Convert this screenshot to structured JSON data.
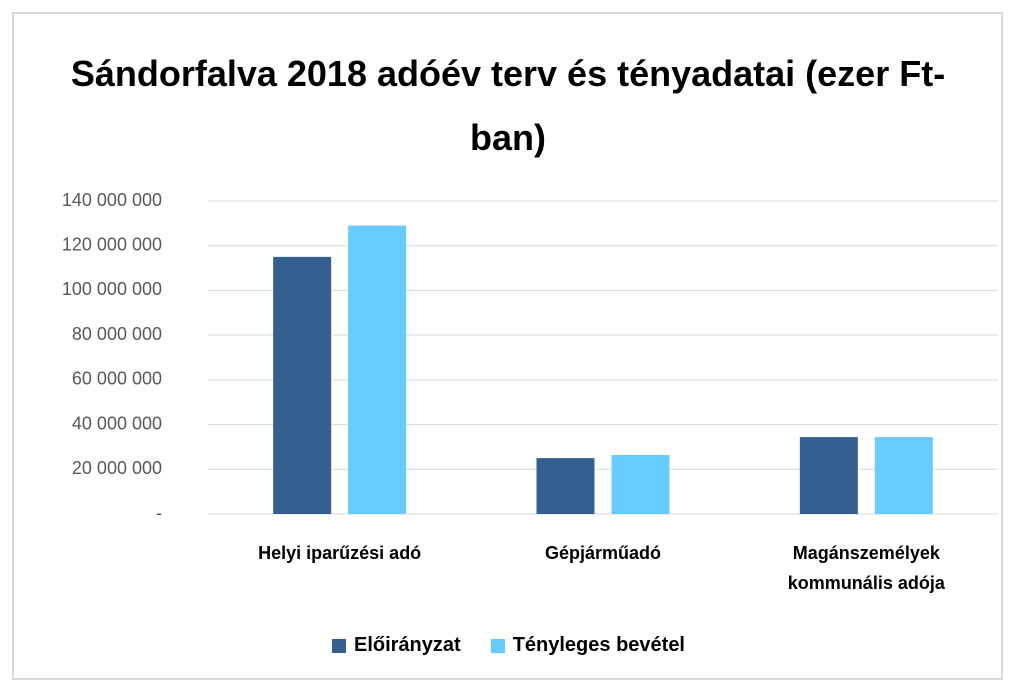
{
  "chart_data": {
    "type": "bar",
    "title": "Sándorfalva 2018 adóév terv és tényadatai (ezer Ft-ban)",
    "categories": [
      "Helyi iparűzési adó",
      "Gépjárműadó",
      "Magánszemélyek kommunális adója"
    ],
    "series": [
      {
        "name": "Előirányzat",
        "color": "#365f91",
        "values": [
          115000000,
          25000000,
          34400000
        ]
      },
      {
        "name": "Tényleges bevétel",
        "color": "#66ccff",
        "values": [
          129000000,
          26400000,
          34400000
        ]
      }
    ],
    "ylim": [
      0,
      140000000
    ],
    "yticks": [
      {
        "value": 0,
        "label": "-"
      },
      {
        "value": 20000000,
        "label": "20 000 000"
      },
      {
        "value": 40000000,
        "label": "40 000 000"
      },
      {
        "value": 60000000,
        "label": "60 000 000"
      },
      {
        "value": 80000000,
        "label": "80 000 000"
      },
      {
        "value": 100000000,
        "label": "100 000 000"
      },
      {
        "value": 120000000,
        "label": "120 000 000"
      },
      {
        "value": 140000000,
        "label": "140 000 000"
      }
    ],
    "grid": true,
    "legend": "bottom"
  }
}
